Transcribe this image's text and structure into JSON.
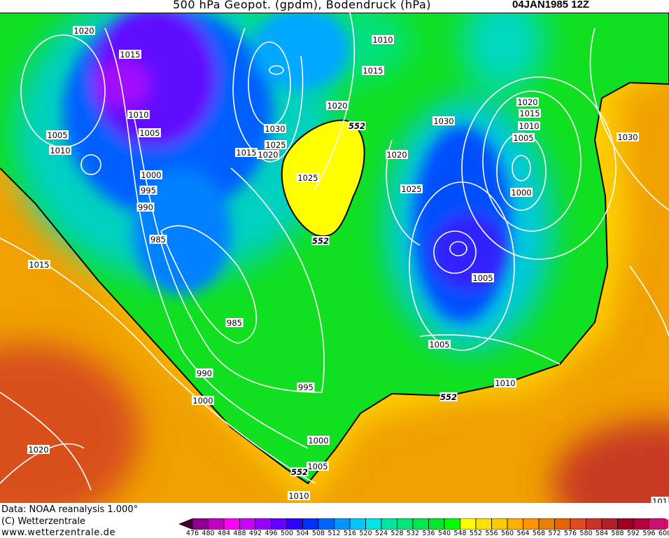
{
  "header": {
    "title": "500 hPa Geopot. (gpdm), Bodendruck (hPa)",
    "datetime": "04JAN1985 12Z"
  },
  "footer": {
    "data_source": "Data: NOAA reanalysis 1.000°",
    "copyright": "(C) Wetterzentrale",
    "website": "www.wetterzentrale.de"
  },
  "colorbar": {
    "labels": [
      "476",
      "480",
      "484",
      "488",
      "492",
      "496",
      "500",
      "504",
      "508",
      "512",
      "516",
      "520",
      "524",
      "528",
      "532",
      "536",
      "540",
      "548",
      "552",
      "556",
      "560",
      "564",
      "568",
      "572",
      "576",
      "580",
      "584",
      "588",
      "592",
      "596",
      "600"
    ],
    "colors": [
      "#5a0050",
      "#8c008c",
      "#c000c0",
      "#ff00ff",
      "#c800ff",
      "#9600ff",
      "#6400ff",
      "#3200ff",
      "#0032ff",
      "#0064ff",
      "#0096ff",
      "#00c8ff",
      "#00e6e6",
      "#00e6a0",
      "#00e678",
      "#00e650",
      "#00e628",
      "#00ff00",
      "#ffff00",
      "#ffe100",
      "#ffc800",
      "#ffaf00",
      "#ff9600",
      "#e68200",
      "#e66400",
      "#e04a20",
      "#c83228",
      "#b41e28",
      "#a00020",
      "#b40040",
      "#d01070"
    ]
  },
  "map": {
    "highlight_contour": "552",
    "pressure_labels": [
      {
        "text": "1020"
      },
      {
        "text": "1015"
      },
      {
        "text": "1010"
      },
      {
        "text": "1005"
      },
      {
        "text": "1010"
      },
      {
        "text": "1005"
      },
      {
        "text": "1000"
      },
      {
        "text": "995"
      },
      {
        "text": "990"
      },
      {
        "text": "985"
      },
      {
        "text": "1015"
      },
      {
        "text": "985"
      },
      {
        "text": "990"
      },
      {
        "text": "1000"
      },
      {
        "text": "995"
      },
      {
        "text": "1000"
      },
      {
        "text": "1005"
      },
      {
        "text": "1010"
      },
      {
        "text": "1020"
      },
      {
        "text": "1010"
      },
      {
        "text": "1015"
      },
      {
        "text": "1020"
      },
      {
        "text": "1030"
      },
      {
        "text": "1025"
      },
      {
        "text": "1015"
      },
      {
        "text": "1020"
      },
      {
        "text": "1025"
      },
      {
        "text": "1020"
      },
      {
        "text": "1025"
      },
      {
        "text": "1030"
      },
      {
        "text": "1020"
      },
      {
        "text": "1015"
      },
      {
        "text": "1010"
      },
      {
        "text": "1005"
      },
      {
        "text": "1000"
      },
      {
        "text": "1005"
      },
      {
        "text": "1005"
      },
      {
        "text": "1010"
      },
      {
        "text": "1030"
      },
      {
        "text": "101"
      }
    ],
    "geopot_labels": [
      {
        "text": "552"
      },
      {
        "text": "552"
      },
      {
        "text": "552"
      },
      {
        "text": "552"
      }
    ]
  }
}
